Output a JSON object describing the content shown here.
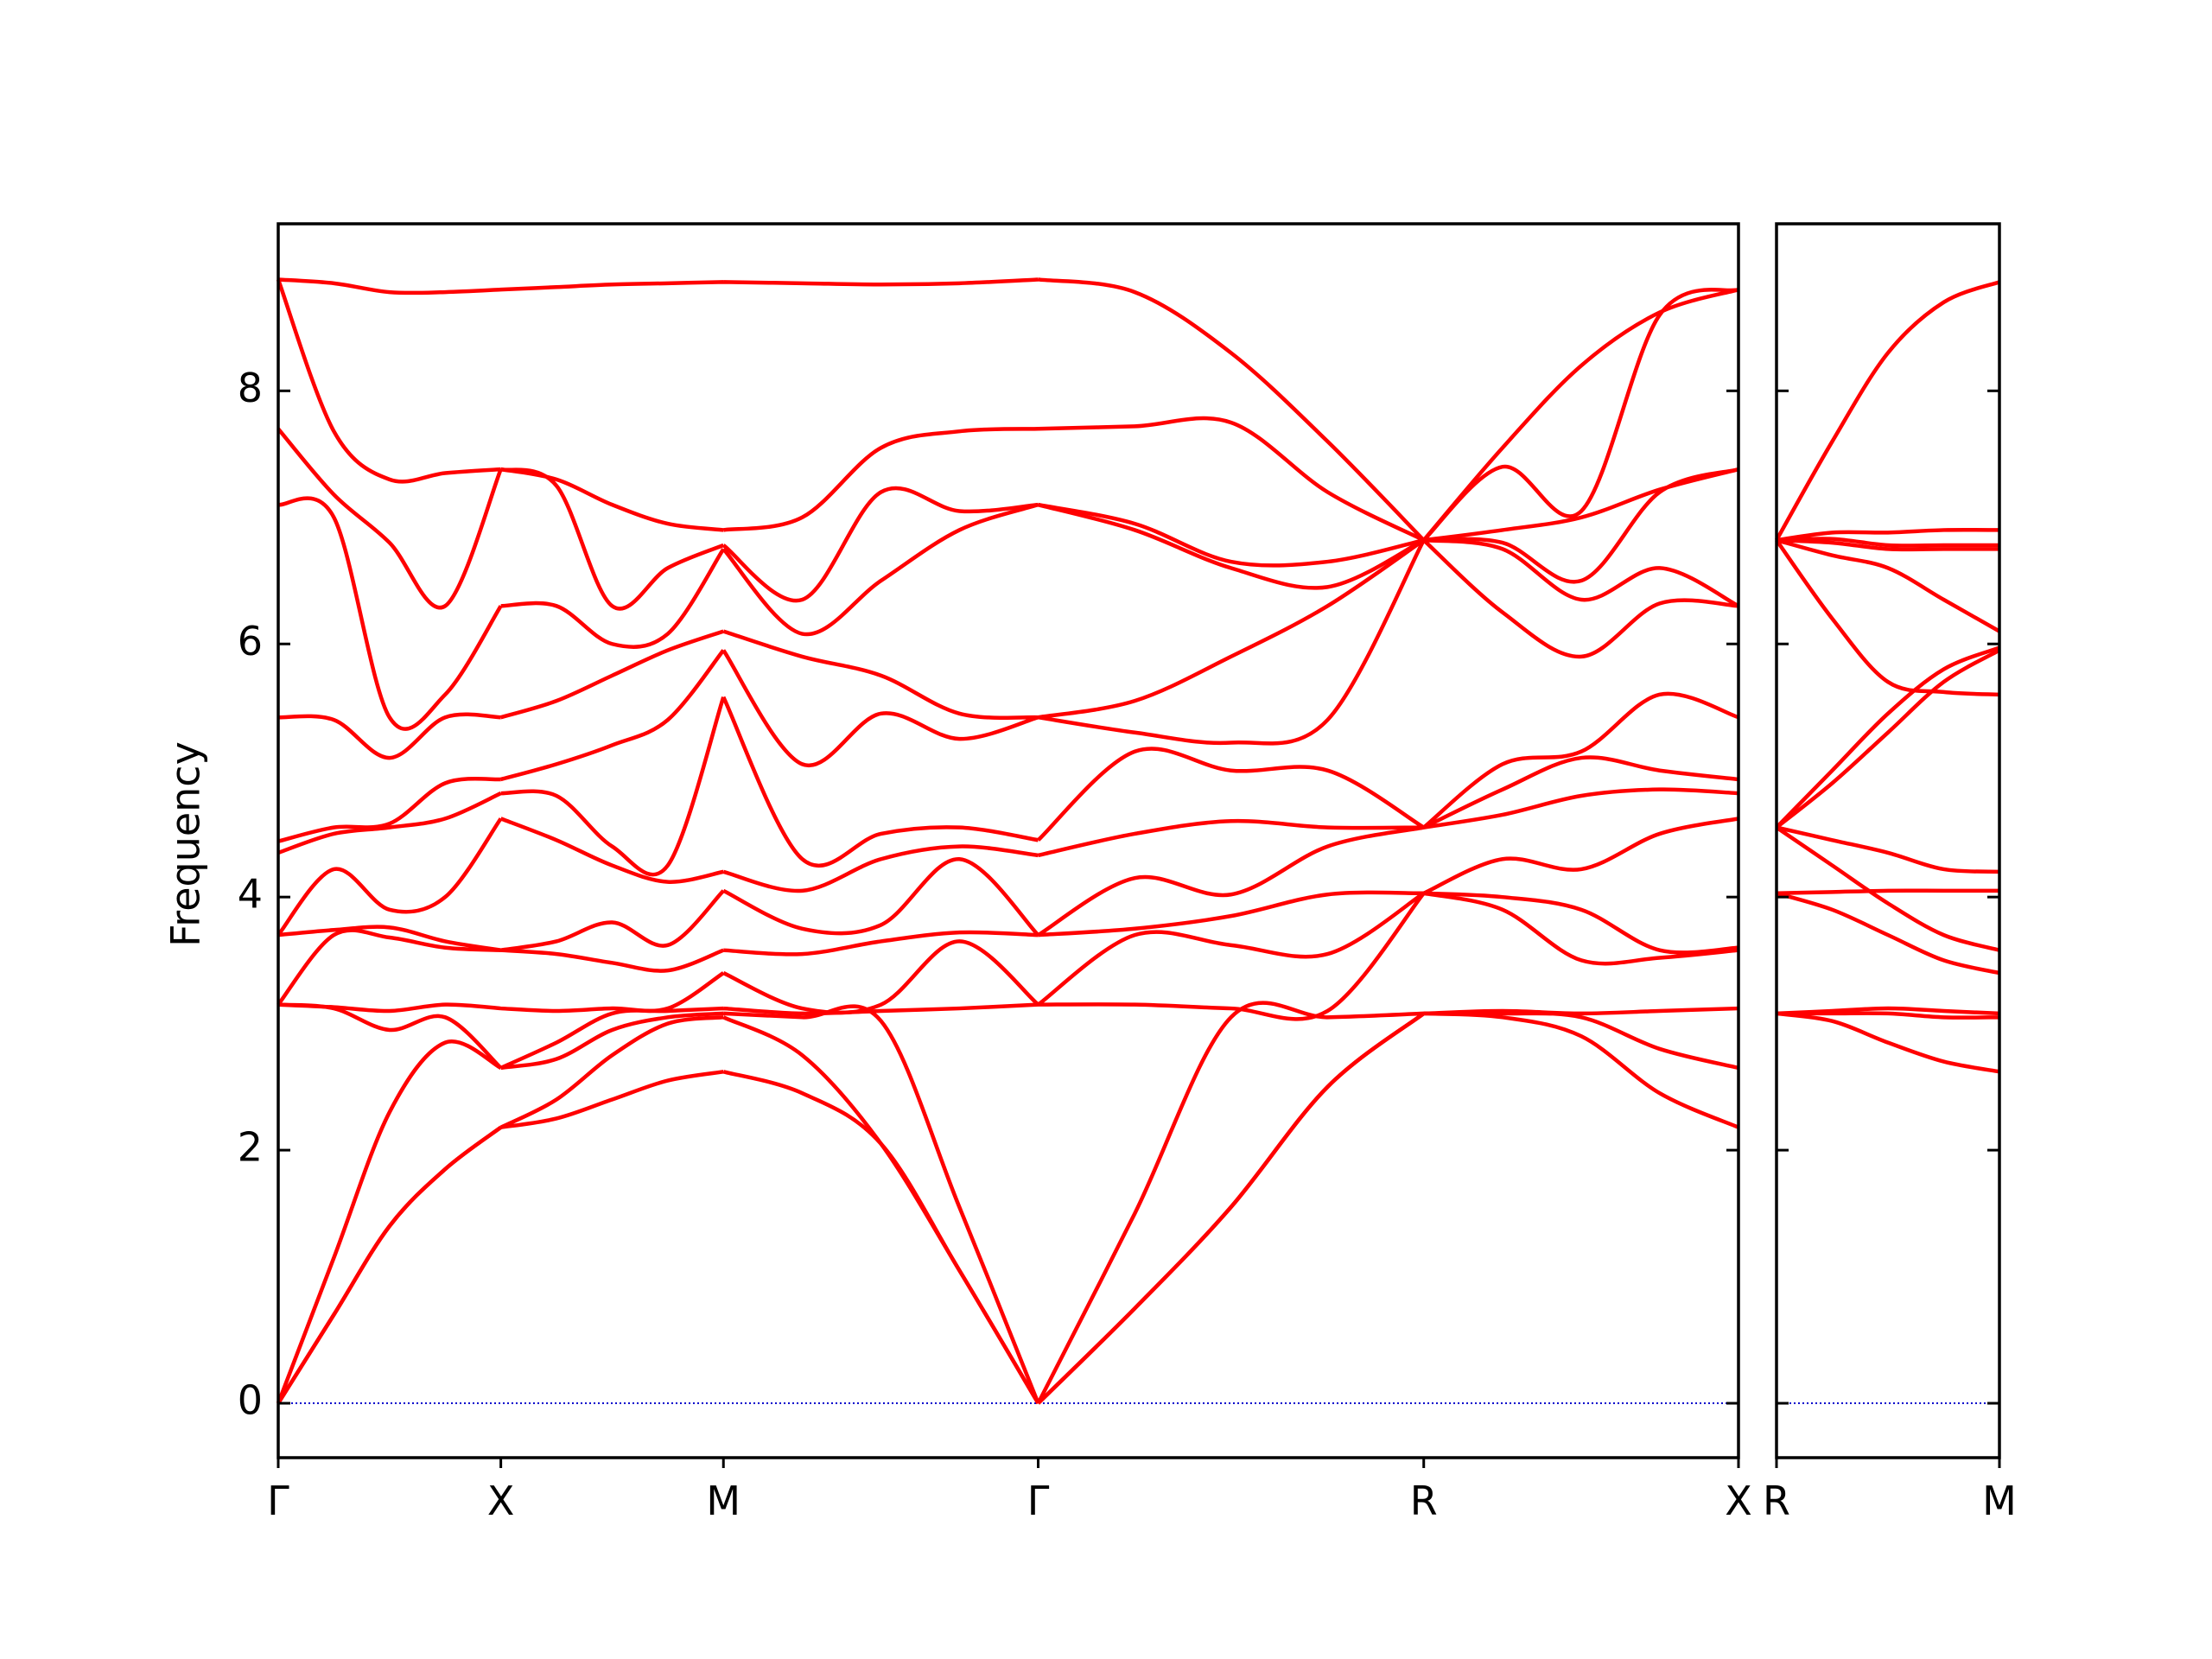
{
  "chart_data": [
    {
      "type": "line",
      "ylabel": "Frequency",
      "color": "#ff0000",
      "hline": 0,
      "hline_color": "#0000cc",
      "show_ytick_labels": true,
      "x": [
        0,
        0.125,
        0.25,
        0.375,
        0.5,
        0.625,
        0.75,
        0.875,
        1.0,
        1.177,
        1.354,
        1.53,
        1.707,
        1.924,
        2.14,
        2.357,
        2.573,
        2.75,
        2.927,
        3.103,
        3.28
      ],
      "xlim": [
        0,
        3.28
      ],
      "ylim": [
        -0.43,
        9.32
      ],
      "xticks": [
        {
          "value": 0,
          "label": "Γ"
        },
        {
          "value": 0.5,
          "label": "X"
        },
        {
          "value": 1.0,
          "label": "M"
        },
        {
          "value": 1.707,
          "label": "Γ"
        },
        {
          "value": 2.573,
          "label": "R"
        },
        {
          "value": 3.28,
          "label": "X"
        }
      ],
      "yticks": [
        0,
        2,
        4,
        6,
        8
      ],
      "series": [
        {
          "values": [
            0,
            0.7,
            1.4,
            1.85,
            2.18,
            2.25,
            2.4,
            2.55,
            2.62,
            2.45,
            2.05,
            1.05,
            0,
            0.75,
            1.55,
            2.5,
            3.08,
            3.05,
            2.9,
            2.45,
            2.18
          ]
        },
        {
          "values": [
            0,
            0.7,
            1.4,
            1.85,
            2.18,
            2.4,
            2.75,
            3.0,
            3.05,
            2.75,
            2.05,
            1.05,
            0,
            0.75,
            1.55,
            2.5,
            3.08,
            3.08,
            3.05,
            2.8,
            2.65
          ]
        },
        {
          "values": [
            0,
            1.15,
            2.3,
            2.85,
            2.65,
            2.72,
            2.95,
            3.05,
            3.08,
            3.05,
            3.02,
            1.55,
            0,
            1.5,
            3.05,
            3.05,
            3.08,
            3.1,
            3.08,
            3.1,
            3.12
          ]
        },
        {
          "values": [
            3.15,
            3.12,
            2.95,
            3.05,
            2.65,
            2.85,
            3.08,
            3.1,
            3.12,
            3.08,
            3.1,
            3.12,
            3.15,
            3.15,
            3.12,
            3.1,
            4.03,
            3.9,
            3.5,
            3.52,
            3.58
          ]
        },
        {
          "values": [
            3.15,
            3.13,
            3.1,
            3.15,
            3.12,
            3.1,
            3.12,
            3.12,
            3.4,
            3.12,
            3.15,
            3.65,
            3.15,
            3.7,
            3.62,
            3.55,
            4.03,
            4.0,
            3.9,
            3.58,
            3.6
          ]
        },
        {
          "values": [
            3.15,
            3.7,
            3.68,
            3.6,
            3.58,
            3.55,
            3.48,
            3.42,
            3.58,
            3.55,
            3.65,
            3.72,
            3.7,
            3.75,
            3.85,
            4.02,
            4.03,
            4.3,
            4.22,
            4.5,
            4.62
          ]
        },
        {
          "values": [
            3.7,
            3.74,
            3.76,
            3.65,
            3.58,
            3.65,
            3.8,
            3.62,
            4.05,
            3.75,
            3.78,
            4.3,
            3.7,
            4.15,
            4.02,
            4.4,
            4.55,
            4.65,
            4.8,
            4.85,
            4.82
          ]
        },
        {
          "values": [
            3.7,
            4.22,
            3.9,
            4.0,
            4.62,
            4.45,
            4.25,
            4.12,
            4.2,
            4.05,
            4.3,
            4.4,
            4.33,
            4.5,
            4.6,
            4.55,
            4.55,
            4.85,
            5.1,
            5.0,
            4.93
          ]
        },
        {
          "values": [
            4.35,
            4.5,
            4.55,
            4.62,
            4.82,
            4.8,
            4.4,
            4.25,
            5.58,
            4.3,
            4.5,
            4.55,
            4.45,
            5.15,
            5.0,
            5.0,
            4.55,
            5.05,
            5.15,
            5.6,
            5.42
          ]
        },
        {
          "values": [
            4.44,
            4.55,
            4.58,
            4.9,
            4.93,
            5.05,
            5.2,
            5.4,
            5.95,
            5.05,
            5.45,
            5.25,
            5.42,
            5.3,
            5.22,
            5.4,
            6.82,
            6.25,
            5.9,
            6.32,
            6.3
          ]
        },
        {
          "values": [
            5.42,
            5.4,
            5.1,
            5.42,
            5.42,
            5.55,
            5.75,
            5.95,
            6.1,
            5.9,
            5.75,
            5.45,
            5.42,
            5.55,
            5.9,
            6.3,
            6.82,
            6.75,
            6.35,
            6.6,
            6.3
          ]
        },
        {
          "values": [
            7.1,
            7.0,
            5.42,
            5.6,
            6.3,
            6.3,
            6.0,
            6.08,
            6.75,
            6.08,
            6.5,
            6.9,
            7.1,
            6.9,
            6.6,
            6.45,
            6.82,
            6.8,
            6.5,
            7.2,
            7.38
          ]
        },
        {
          "values": [
            7.7,
            7.18,
            6.8,
            6.3,
            7.38,
            7.25,
            6.3,
            6.6,
            6.78,
            6.35,
            7.2,
            7.05,
            7.1,
            6.95,
            6.65,
            6.65,
            6.82,
            6.9,
            7.0,
            7.22,
            7.38
          ]
        },
        {
          "values": [
            8.88,
            7.68,
            7.3,
            7.35,
            7.38,
            7.3,
            7.1,
            6.95,
            6.9,
            7.0,
            7.55,
            7.68,
            7.7,
            7.72,
            7.75,
            7.2,
            6.82,
            7.4,
            7.05,
            8.6,
            8.8
          ]
        },
        {
          "values": [
            8.88,
            8.85,
            8.78,
            8.78,
            8.8,
            8.82,
            8.84,
            8.85,
            8.86,
            8.85,
            8.84,
            8.85,
            8.88,
            8.78,
            8.3,
            7.6,
            6.82,
            7.55,
            8.2,
            8.62,
            8.8
          ]
        }
      ]
    },
    {
      "type": "line",
      "color": "#ff0000",
      "hline": 0,
      "hline_color": "#0000cc",
      "show_ytick_labels": false,
      "x": [
        0,
        0.125,
        0.25,
        0.375,
        0.5
      ],
      "xlim": [
        0,
        0.5
      ],
      "ylim": [
        -0.43,
        9.32
      ],
      "xticks": [
        {
          "value": 0,
          "label": "R"
        },
        {
          "value": 0.5,
          "label": "M"
        }
      ],
      "yticks": [
        0,
        2,
        4,
        6,
        8
      ],
      "series": [
        {
          "values": [
            3.08,
            3.02,
            2.85,
            2.7,
            2.62
          ]
        },
        {
          "values": [
            3.08,
            3.08,
            3.08,
            3.05,
            3.05
          ]
        },
        {
          "values": [
            3.08,
            3.1,
            3.12,
            3.1,
            3.08
          ]
        },
        {
          "values": [
            4.03,
            3.9,
            3.7,
            3.5,
            3.4
          ]
        },
        {
          "values": [
            4.55,
            4.25,
            3.95,
            3.7,
            3.58
          ]
        },
        {
          "values": [
            4.03,
            4.04,
            4.05,
            4.05,
            4.05
          ]
        },
        {
          "values": [
            4.55,
            4.45,
            4.35,
            4.22,
            4.2
          ]
        },
        {
          "values": [
            4.55,
            4.9,
            5.3,
            5.7,
            5.95
          ]
        },
        {
          "values": [
            4.55,
            5.0,
            5.45,
            5.8,
            5.97
          ]
        },
        {
          "values": [
            6.82,
            6.2,
            5.7,
            5.62,
            5.6
          ]
        },
        {
          "values": [
            6.82,
            6.7,
            6.6,
            6.35,
            6.1
          ]
        },
        {
          "values": [
            6.82,
            6.8,
            6.75,
            6.75,
            6.75
          ]
        },
        {
          "values": [
            6.82,
            6.83,
            6.78,
            6.78,
            6.78
          ]
        },
        {
          "values": [
            6.82,
            6.88,
            6.88,
            6.9,
            6.9
          ]
        },
        {
          "values": [
            6.82,
            7.6,
            8.3,
            8.7,
            8.86
          ]
        }
      ]
    }
  ]
}
